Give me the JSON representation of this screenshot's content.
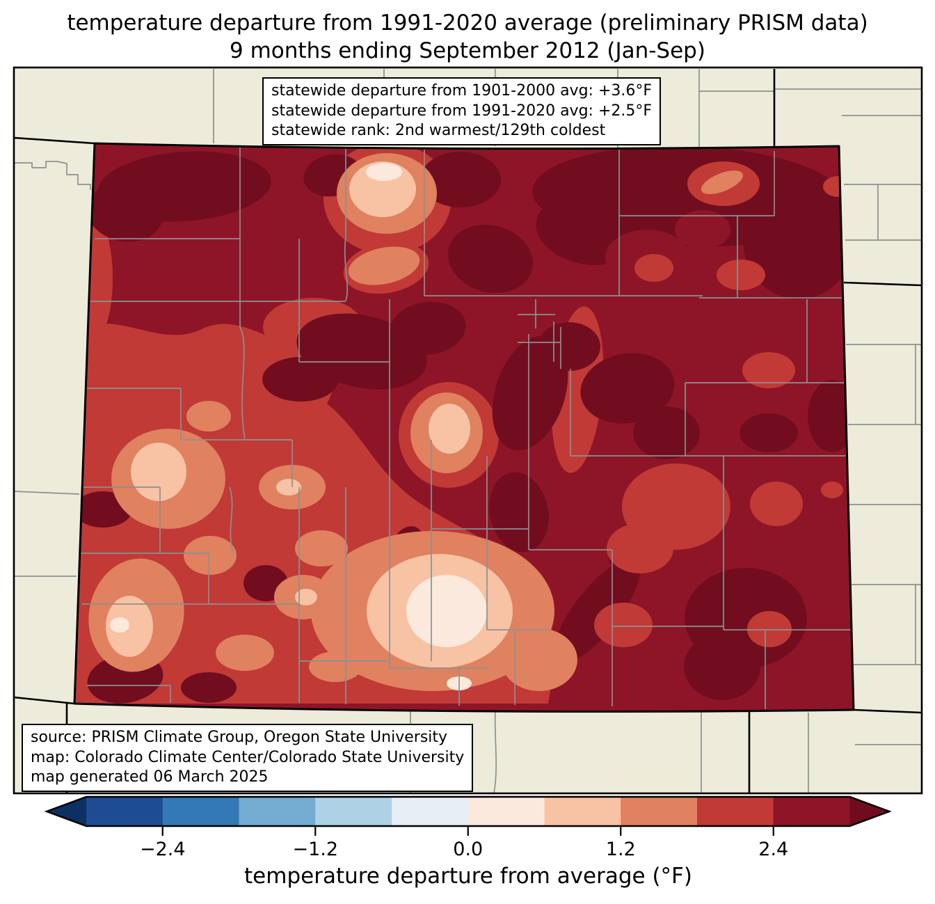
{
  "title": {
    "line1": "temperature departure from 1991-2020 average (preliminary PRISM data)",
    "line2": "9 months ending September 2012 (Jan-Sep)"
  },
  "stats_box": {
    "line1": "statewide departure from 1901-2000 avg: +3.6°F",
    "line2": "statewide departure from 1991-2020 avg: +2.5°F",
    "line3": "statewide rank: 2nd warmest/129th coldest"
  },
  "source_box": {
    "line1": "source: PRISM Climate Group, Oregon State University",
    "line2": "map: Colorado Climate Center/Colorado State University",
    "line3": "map generated 06 March 2025"
  },
  "colorbar": {
    "label": "temperature departure from average (°F)",
    "ticks": [
      "−2.4",
      "−1.2",
      "0.0",
      "1.2",
      "2.4"
    ],
    "segment_colors": [
      "#1d4c95",
      "#3379b5",
      "#74abd0",
      "#aed1e6",
      "#e7eef5",
      "#fbe9dd",
      "#f8c2a4",
      "#e0815f",
      "#c13a36",
      "#8e1527"
    ],
    "under_color": "#0c3061",
    "over_color": "#710c1f"
  },
  "map": {
    "region": "Colorado",
    "palette": {
      "background": "#edebd9",
      "county_line": "#8b9192",
      "state_line": "#000000",
      "band_0_0p6": "#fbe9dd",
      "band_0p6_1p2": "#f8c2a4",
      "band_1p2_1p8": "#e0815f",
      "band_1p8_2p4": "#c13a36",
      "band_2p4_3p0": "#8e1527",
      "band_over_3p0": "#720d1f"
    }
  },
  "chart_data": {
    "type": "heatmap",
    "title": "temperature departure from 1991-2020 average (preliminary PRISM data) — 9 months ending September 2012 (Jan-Sep)",
    "region": "Colorado statewide filled-contour (PRISM) map with county boundaries",
    "colorbar_label": "temperature departure from average (°F)",
    "colorbar_ticks": [
      -2.4,
      -1.2,
      0.0,
      1.2,
      2.4
    ],
    "colorbar_range": [
      -3.0,
      3.0
    ],
    "contour_interval_F": 0.6,
    "statistics": {
      "statewide_departure_from_1901_2000_avg_F": "+3.6",
      "statewide_departure_from_1991_2020_avg_F": "+2.5",
      "statewide_rank": "2nd warmest/129th coldest"
    },
    "value_summary": "Entire state above average; warmest (>+3.0°F, darkest maroon) across the northeast, north-central mountains and southeast ridges; most plains +2.4 to +3.0°F; western valleys +1.2 to +2.4°F; coolest pockets (+0.0 to +1.2°F) in the San Luis Valley, Yampa valley and Gunnison basin."
  }
}
